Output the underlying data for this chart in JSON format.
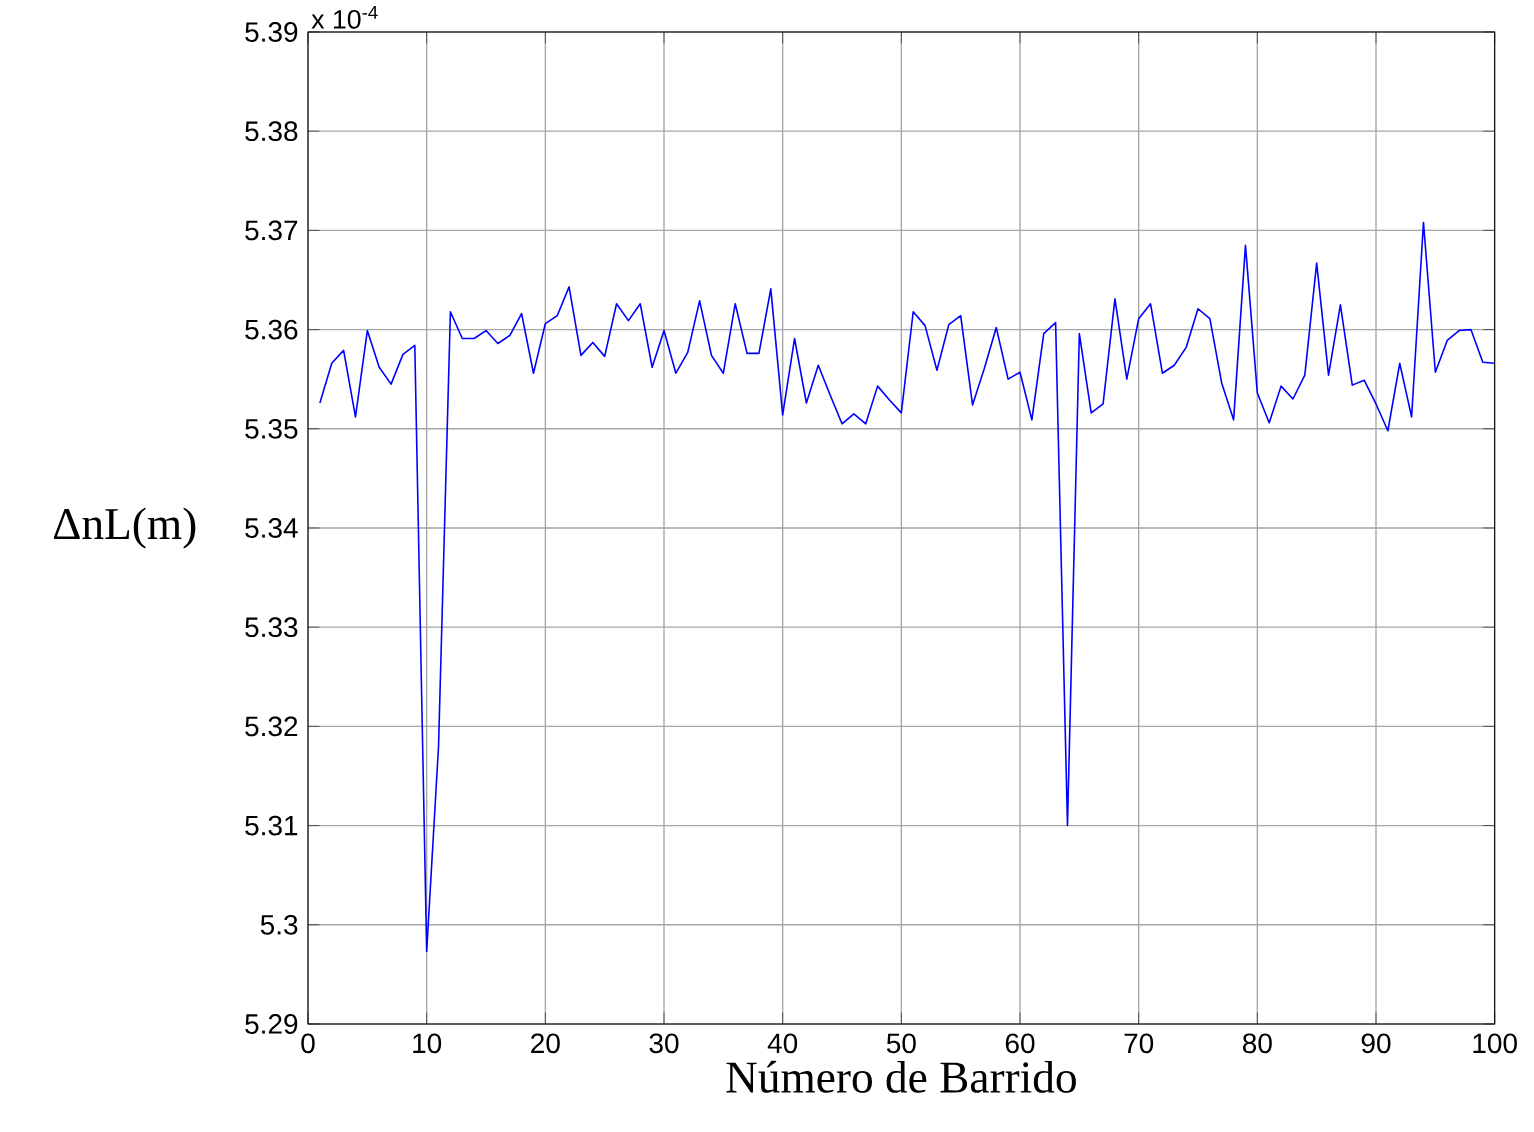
{
  "chart_data": {
    "type": "line",
    "xlabel": "Número de Barrido",
    "ylabel": "ΔnL(m)",
    "annotations": [
      "x 10$^{-4}$"
    ],
    "x": [
      1,
      2,
      3,
      4,
      5,
      6,
      7,
      8,
      9,
      10,
      11,
      12,
      13,
      14,
      15,
      16,
      17,
      18,
      19,
      20,
      21,
      22,
      23,
      24,
      25,
      26,
      27,
      28,
      29,
      30,
      31,
      32,
      33,
      34,
      35,
      36,
      37,
      38,
      39,
      40,
      41,
      42,
      43,
      44,
      45,
      46,
      47,
      48,
      49,
      50,
      51,
      52,
      53,
      54,
      55,
      56,
      57,
      58,
      59,
      60,
      61,
      62,
      63,
      64,
      65,
      66,
      67,
      68,
      69,
      70,
      71,
      72,
      73,
      74,
      75,
      76,
      77,
      78,
      79,
      80,
      81,
      82,
      83,
      84,
      85,
      86,
      87,
      88,
      89,
      90,
      91,
      92,
      93,
      94,
      95,
      96,
      97,
      98,
      99,
      100
    ],
    "series": [
      {
        "color": "#0000ff",
        "values": [
          5.3526,
          5.3566,
          5.3579,
          5.3512,
          5.3599,
          5.3562,
          5.3545,
          5.3575,
          5.3584,
          5.2973,
          5.318,
          5.3618,
          5.3591,
          5.3591,
          5.3599,
          5.3586,
          5.3594,
          5.3616,
          5.3556,
          5.3606,
          5.3614,
          5.3643,
          5.3574,
          5.3587,
          5.3573,
          5.3626,
          5.3609,
          5.3626,
          5.3562,
          5.3599,
          5.3556,
          5.3577,
          5.3629,
          5.3574,
          5.3556,
          5.3626,
          5.3576,
          5.3576,
          5.3641,
          5.3514,
          5.3591,
          5.3526,
          5.3564,
          5.3534,
          5.3505,
          5.3515,
          5.3505,
          5.3543,
          5.3529,
          5.3516,
          5.3618,
          5.3604,
          5.3559,
          5.3605,
          5.3614,
          5.3524,
          5.3561,
          5.3602,
          5.355,
          5.3557,
          5.3509,
          5.3596,
          5.3607,
          5.31,
          5.3596,
          5.3516,
          5.3525,
          5.3631,
          5.355,
          5.3611,
          5.3626,
          5.3556,
          5.3564,
          5.3582,
          5.3621,
          5.3611,
          5.3546,
          5.3509,
          5.3685,
          5.3536,
          5.3506,
          5.3543,
          5.353,
          5.3554,
          5.3667,
          5.3554,
          5.3625,
          5.3544,
          5.3549,
          5.3525,
          5.3498,
          5.3566,
          5.3512,
          5.3708,
          5.3557,
          5.3589,
          5.3599,
          5.36,
          5.3567,
          5.3566
        ]
      }
    ],
    "xlim": [
      0,
      100
    ],
    "ylim": [
      5.29,
      5.39
    ],
    "xticks": [
      0,
      10,
      20,
      30,
      40,
      50,
      60,
      70,
      80,
      90,
      100
    ],
    "yticks": [
      5.29,
      5.3,
      5.31,
      5.32,
      5.33,
      5.34,
      5.35,
      5.36,
      5.37,
      5.38,
      5.39
    ],
    "grid": true,
    "marker": "none",
    "line_style": "solid"
  }
}
